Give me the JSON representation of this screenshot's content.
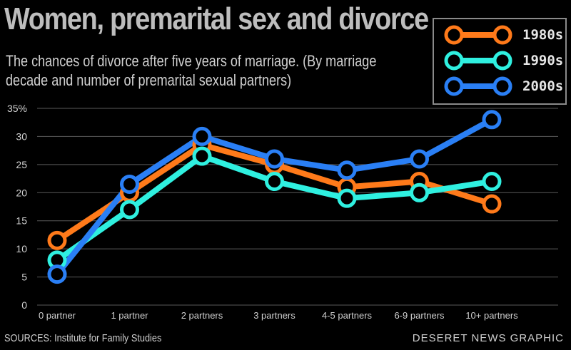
{
  "title": "Women, premarital sex and divorce",
  "subtitle": "The chances of divorce after five years of marriage. (By marriage decade and number of premarital sexual partners)",
  "sources": "SOURCES: Institute for Family Studies",
  "credit": "DESERET NEWS GRAPHIC",
  "chart_data": {
    "type": "line",
    "title": "Women, premarital sex and divorce",
    "subtitle": "The chances of divorce after five years of marriage. (By marriage decade and number of premarital sexual partners)",
    "xlabel": "",
    "ylabel": "",
    "categories": [
      "0 partner",
      "1 partner",
      "2 partners",
      "3 partners",
      "4-5 partners",
      "6-9 partners",
      "10+ partners"
    ],
    "y_ticks": [
      "0",
      "5",
      "10",
      "15",
      "20",
      "25",
      "30",
      "35%"
    ],
    "ylim": [
      0,
      35
    ],
    "grid": true,
    "legend_position": "top-right",
    "series": [
      {
        "name": "1980s",
        "color": "#ff7a1a",
        "values": [
          11.5,
          20,
          28.5,
          25,
          21,
          22,
          18
        ]
      },
      {
        "name": "1990s",
        "color": "#2ff0e0",
        "values": [
          8,
          17,
          26.5,
          22,
          19,
          20,
          22
        ]
      },
      {
        "name": "2000s",
        "color": "#2a7ff5",
        "values": [
          5.5,
          21.5,
          30,
          26,
          24,
          26,
          33
        ]
      }
    ]
  }
}
